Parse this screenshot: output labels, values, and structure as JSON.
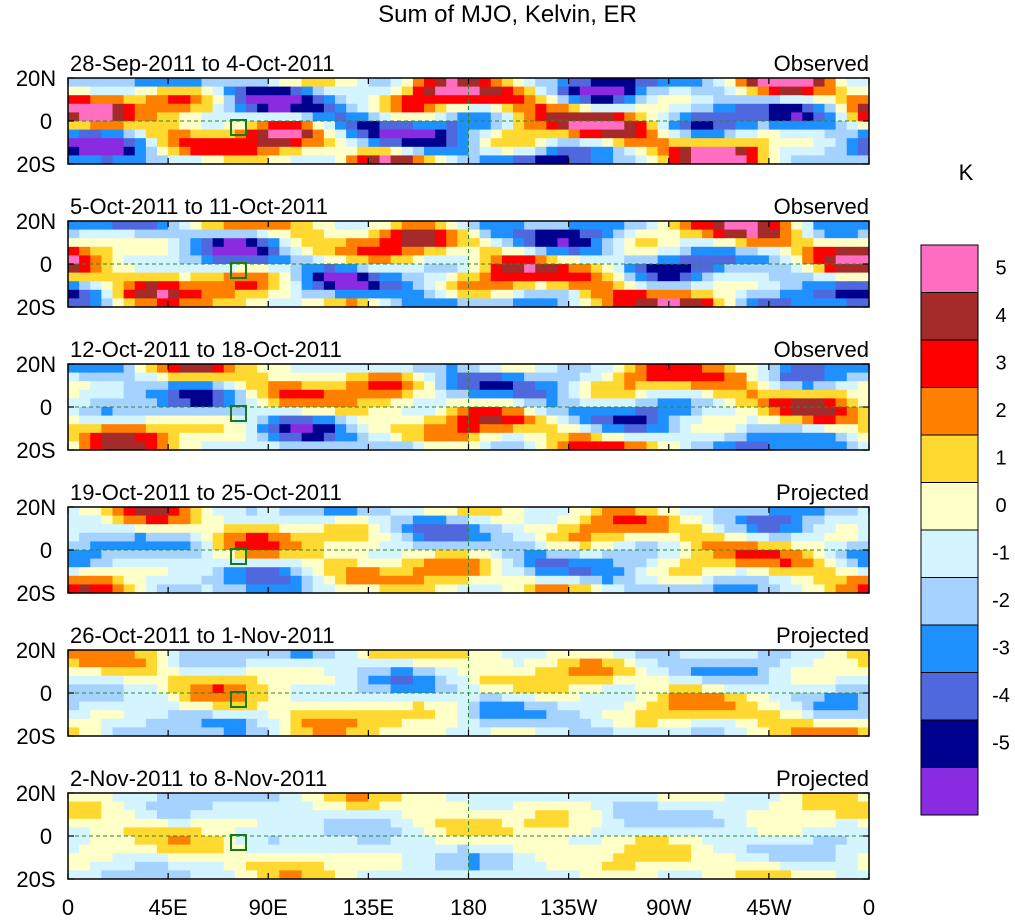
{
  "chart_data": {
    "type": "heatmap",
    "title": "Sum of MJO, Kelvin, ER",
    "x_ticks": [
      "0",
      "45E",
      "90E",
      "135E",
      "180",
      "135W",
      "90W",
      "45W",
      "0"
    ],
    "y_ticks": [
      "20N",
      "0",
      "20S"
    ],
    "xlim": [
      0,
      360
    ],
    "ylim": [
      -20,
      20
    ],
    "colorbar": {
      "unit": "K",
      "levels": [
        "5",
        "4",
        "3",
        "2",
        "1",
        "0",
        "-1",
        "-2",
        "-3",
        "-4",
        "-5"
      ],
      "colors": [
        "#ff6ec0",
        "#a52a2a",
        "#ff0000",
        "#ff7f00",
        "#ffd830",
        "#ffffc8",
        "#d4f4ff",
        "#a6d2ff",
        "#1e90ff",
        "#4f68dd",
        "#00008f",
        "#8a2be2"
      ]
    },
    "panels": [
      {
        "period": "28-Sep-2011 to 4-Oct-2011",
        "status": "Observed"
      },
      {
        "period": "5-Oct-2011 to 11-Oct-2011",
        "status": "Observed"
      },
      {
        "period": "12-Oct-2011 to 18-Oct-2011",
        "status": "Observed"
      },
      {
        "period": "19-Oct-2011 to 25-Oct-2011",
        "status": "Projected"
      },
      {
        "period": "26-Oct-2011 to 1-Nov-2011",
        "status": "Projected"
      },
      {
        "period": "2-Nov-2011 to 8-Nov-2011",
        "status": "Projected"
      }
    ]
  }
}
